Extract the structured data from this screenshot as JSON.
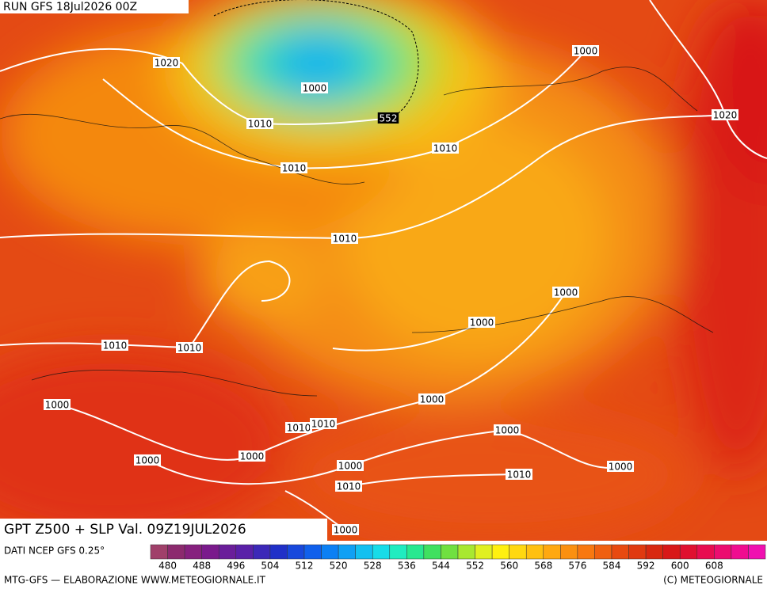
{
  "header": {
    "run": "RUN GFS 18Jul2026 00Z"
  },
  "title": "GPT Z500 + SLP Val. 09Z19JUL2026",
  "source": "DATI NCEP GFS 0.25°",
  "credit_left": "MTG-GFS — ELABORAZIONE WWW.METEOGIORNALE.IT",
  "credit_right": "(C) METEOGIORNALE",
  "colorbar": {
    "colors": [
      "#a0406a",
      "#8c2a6e",
      "#86207e",
      "#7a1a8c",
      "#6a1e9a",
      "#5a20a8",
      "#3c28b8",
      "#2030c8",
      "#1848dc",
      "#1060ec",
      "#0c80f4",
      "#10a0f4",
      "#14c0f0",
      "#18dce8",
      "#20ecc0",
      "#28e890",
      "#40e060",
      "#70e040",
      "#a8e830",
      "#e0f020",
      "#fff010",
      "#ffd810",
      "#ffc010",
      "#ffa810",
      "#fb9010",
      "#f87810",
      "#f06010",
      "#e84a10",
      "#e03a10",
      "#d82810",
      "#d81818",
      "#e01030",
      "#e80c50",
      "#ec0c70",
      "#f00c90",
      "#f010b0"
    ],
    "labels": [
      480,
      488,
      496,
      504,
      512,
      520,
      528,
      536,
      544,
      552,
      560,
      568,
      576,
      584,
      592,
      600,
      608
    ]
  },
  "contour_labels": [
    "1020",
    "1000",
    "1010",
    "552",
    "1010",
    "1010",
    "1000",
    "1020",
    "1010",
    "1000",
    "1000",
    "1010",
    "1010",
    "1000",
    "1000",
    "1010",
    "1010",
    "1000",
    "1000",
    "1000",
    "1000",
    "1000",
    "1010",
    "1010",
    "1000"
  ]
}
